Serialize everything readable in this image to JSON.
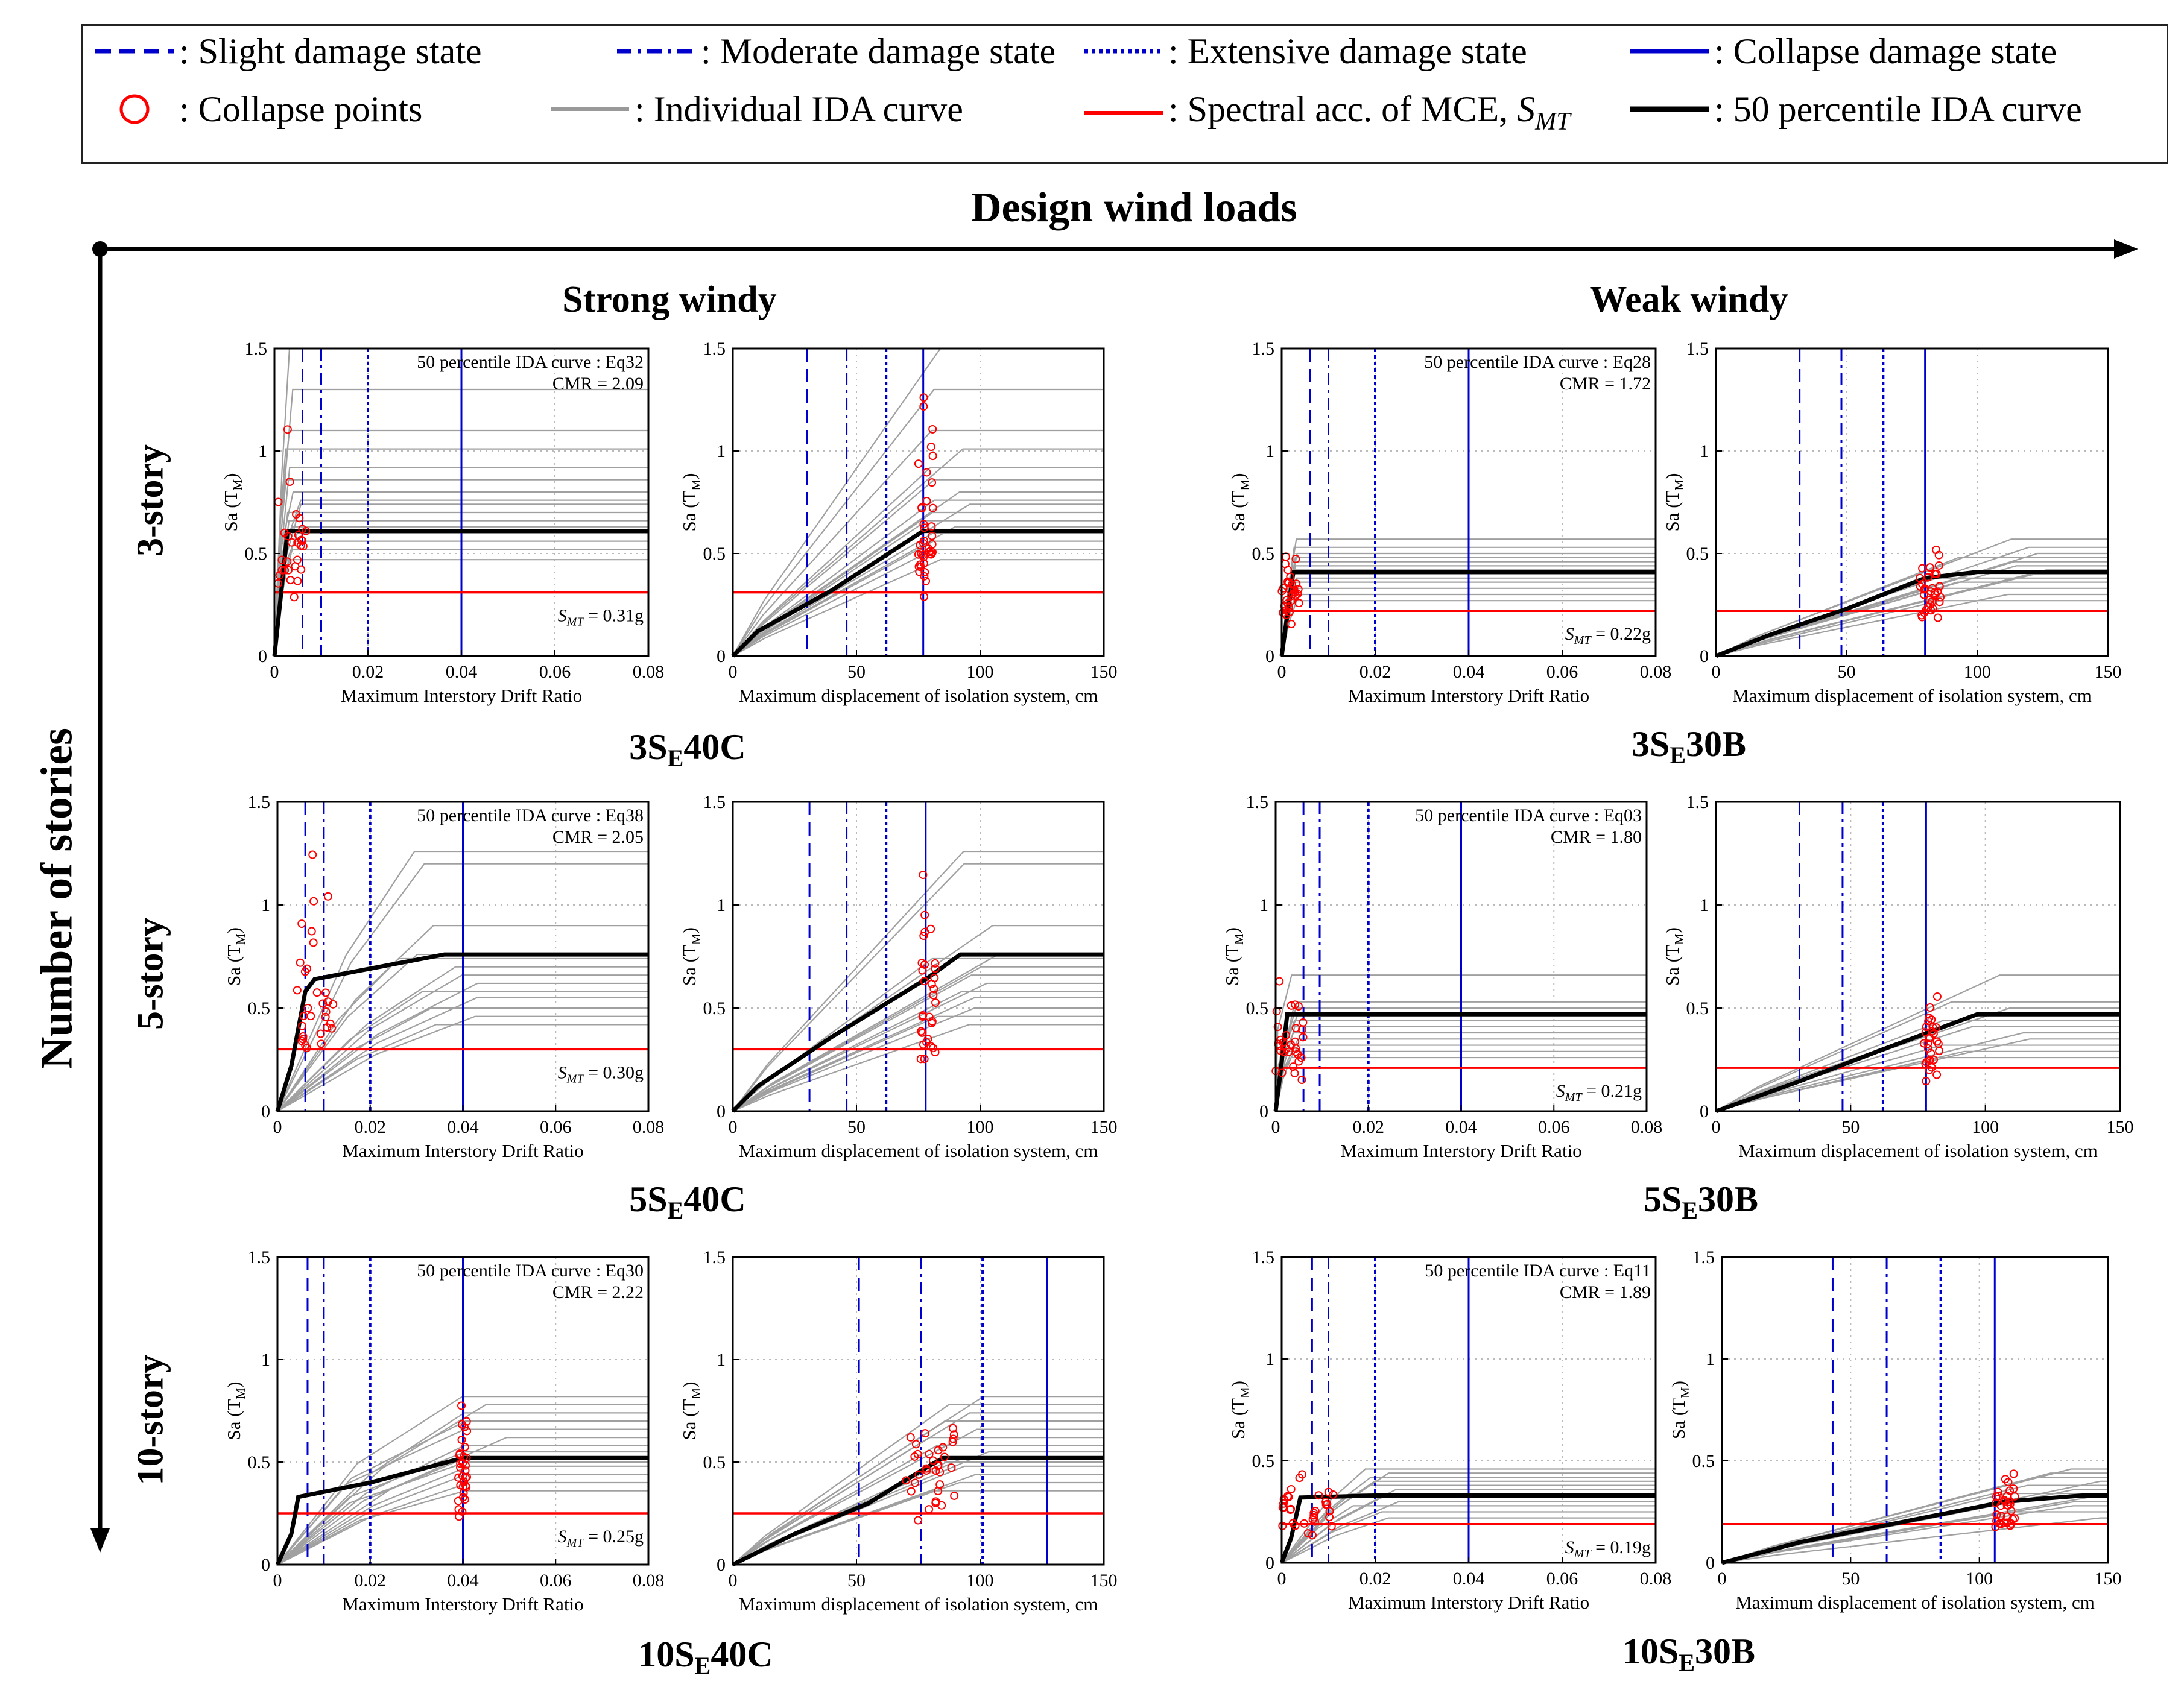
{
  "legend": {
    "items": [
      {
        "key": "slight",
        "text": ": Slight damage state",
        "color": "#0000cc",
        "style": "dashed"
      },
      {
        "key": "moderate",
        "text": ": Moderate damage state",
        "color": "#0000cc",
        "style": "dashdot"
      },
      {
        "key": "extensive",
        "text": ": Extensive damage state",
        "color": "#0000cc",
        "style": "dotted"
      },
      {
        "key": "collapse_state",
        "text": ": Collapse damage state",
        "color": "#0000cc",
        "style": "solid"
      },
      {
        "key": "collapse_points",
        "text": ": Collapse points",
        "color": "#ff0000",
        "style": "circle"
      },
      {
        "key": "individual",
        "text": ": Individual IDA curve",
        "color": "#999999",
        "style": "solid"
      },
      {
        "key": "mce",
        "text": ": Spectral acc. of MCE, ",
        "sym": "S",
        "sub": "MT",
        "color": "#ff0000",
        "style": "solid"
      },
      {
        "key": "median",
        "text": ": 50 percentile IDA curve",
        "color": "#000000",
        "style": "solid-thick"
      }
    ]
  },
  "axis_titles": {
    "horizontal": "Design wind loads",
    "vertical": "Number of stories"
  },
  "columns": [
    "Strong windy",
    "Weak windy"
  ],
  "rows": [
    "3-story",
    "5-story",
    "10-story"
  ],
  "colors": {
    "individual": "#a0a0a0",
    "median": "#000000",
    "mce": "#ff0000",
    "damage": "#0000cc",
    "collapse": "#ff0000"
  },
  "panel_labels": [
    {
      "pre": "3S",
      "sub": "E",
      "post": "40C"
    },
    {
      "pre": "3S",
      "sub": "E",
      "post": "30B"
    },
    {
      "pre": "5S",
      "sub": "E",
      "post": "40C"
    },
    {
      "pre": "5S",
      "sub": "E",
      "post": "30B"
    },
    {
      "pre": "10S",
      "sub": "E",
      "post": "40C"
    },
    {
      "pre": "10S",
      "sub": "E",
      "post": "30B"
    }
  ],
  "chart_data": [
    {
      "type": "line",
      "panel": "3SE40C",
      "kind": "drift",
      "xlabel": "Maximum Interstory Drift Ratio",
      "ylabel": "Sa (T",
      "ylabel_sub": "M",
      "ylabel_end": ")",
      "xlim": [
        0,
        0.08
      ],
      "ylim": [
        0,
        1.5
      ],
      "xticks": [
        0,
        0.02,
        0.04,
        0.06,
        0.08
      ],
      "xtick_labels": [
        "0",
        "0.02",
        "0.04",
        "0.06",
        "0.08"
      ],
      "yticks": [
        0,
        0.5,
        1,
        1.5
      ],
      "ytick_labels": [
        "0",
        "0.5",
        "1",
        "1.5"
      ],
      "damage_states": [
        0.006,
        0.01,
        0.02,
        0.04
      ],
      "mce": 0.31,
      "mce_label": "= 0.31g",
      "median_label": "50 percentile IDA curve : Eq32",
      "cmr_label": "CMR = 2.09",
      "median_curve": [
        [
          0,
          0
        ],
        [
          0.0014,
          0.3
        ],
        [
          0.0028,
          0.61
        ],
        [
          0.08,
          0.61
        ]
      ],
      "plateaus": [
        0.47,
        0.52,
        0.56,
        0.6,
        0.63,
        0.66,
        0.7,
        0.74,
        0.76,
        0.8,
        0.86,
        0.92,
        1.01,
        1.1,
        1.3,
        1.5
      ],
      "collapse_x": 0.003,
      "x_spread": 0.004
    },
    {
      "type": "line",
      "panel": "3SE40C",
      "kind": "disp",
      "xlabel": "Maximum displacement of isolation system, cm",
      "ylabel": "Sa (T",
      "ylabel_sub": "M",
      "ylabel_end": ")",
      "xlim": [
        0,
        150
      ],
      "ylim": [
        0,
        1.5
      ],
      "xticks": [
        0,
        50,
        100,
        150
      ],
      "xtick_labels": [
        "0",
        "50",
        "100",
        "150"
      ],
      "yticks": [
        0,
        0.5,
        1,
        1.5
      ],
      "ytick_labels": [
        "0",
        "0.5",
        "1",
        "1.5"
      ],
      "damage_states": [
        30,
        46,
        62,
        77
      ],
      "mce": 0.31,
      "median_curve": [
        [
          0,
          0
        ],
        [
          10,
          0.12
        ],
        [
          40,
          0.32
        ],
        [
          77,
          0.61
        ],
        [
          150,
          0.61
        ]
      ],
      "plateaus": [
        0.47,
        0.52,
        0.56,
        0.6,
        0.63,
        0.66,
        0.7,
        0.74,
        0.76,
        0.8,
        0.86,
        0.92,
        1.01,
        1.1,
        1.3,
        1.5
      ],
      "collapse_x": 78,
      "x_spread": 3
    },
    {
      "type": "line",
      "panel": "3SE30B",
      "kind": "drift",
      "xlabel": "Maximum Interstory Drift Ratio",
      "ylabel": "Sa (T",
      "ylabel_sub": "M",
      "ylabel_end": ")",
      "xlim": [
        0,
        0.08
      ],
      "ylim": [
        0,
        1.5
      ],
      "xticks": [
        0,
        0.02,
        0.04,
        0.06,
        0.08
      ],
      "xtick_labels": [
        "0",
        "0.02",
        "0.04",
        "0.06",
        "0.08"
      ],
      "yticks": [
        0,
        0.5,
        1,
        1.5
      ],
      "ytick_labels": [
        "0",
        "0.5",
        "1",
        "1.5"
      ],
      "damage_states": [
        0.006,
        0.01,
        0.02,
        0.04
      ],
      "mce": 0.22,
      "mce_label": "= 0.22g",
      "median_label": "50 percentile IDA curve : Eq28",
      "cmr_label": "CMR = 1.72",
      "median_curve": [
        [
          0,
          0
        ],
        [
          0.0012,
          0.2
        ],
        [
          0.0025,
          0.41
        ],
        [
          0.08,
          0.41
        ]
      ],
      "plateaus": [
        0.27,
        0.3,
        0.33,
        0.36,
        0.38,
        0.4,
        0.42,
        0.44,
        0.46,
        0.48,
        0.5,
        0.53,
        0.57
      ],
      "collapse_x": 0.002,
      "x_spread": 0.002
    },
    {
      "type": "line",
      "panel": "3SE30B",
      "kind": "disp",
      "xlabel": "Maximum displacement of isolation system, cm",
      "ylabel": "Sa (T",
      "ylabel_sub": "M",
      "ylabel_end": ")",
      "xlim": [
        0,
        150
      ],
      "ylim": [
        0,
        1.5
      ],
      "xticks": [
        0,
        50,
        100,
        150
      ],
      "xtick_labels": [
        "0",
        "50",
        "100",
        "150"
      ],
      "yticks": [
        0,
        0.5,
        1,
        1.5
      ],
      "ytick_labels": [
        "0",
        "0.5",
        "1",
        "1.5"
      ],
      "damage_states": [
        32,
        48,
        64,
        80
      ],
      "mce": 0.22,
      "median_curve": [
        [
          0,
          0
        ],
        [
          20,
          0.1
        ],
        [
          50,
          0.23
        ],
        [
          80,
          0.38
        ],
        [
          100,
          0.41
        ],
        [
          150,
          0.41
        ]
      ],
      "plateaus": [
        0.27,
        0.3,
        0.33,
        0.36,
        0.38,
        0.4,
        0.42,
        0.44,
        0.46,
        0.48,
        0.5,
        0.53,
        0.57
      ],
      "collapse_x": 82,
      "x_spread": 4
    },
    {
      "type": "line",
      "panel": "5SE40C",
      "kind": "drift",
      "xlabel": "Maximum Interstory Drift Ratio",
      "ylabel": "Sa (T",
      "ylabel_sub": "M",
      "ylabel_end": ")",
      "xlim": [
        0,
        0.08
      ],
      "ylim": [
        0,
        1.5
      ],
      "xticks": [
        0,
        0.02,
        0.04,
        0.06,
        0.08
      ],
      "xtick_labels": [
        "0",
        "0.02",
        "0.04",
        "0.06",
        "0.08"
      ],
      "yticks": [
        0,
        0.5,
        1,
        1.5
      ],
      "ytick_labels": [
        "0",
        "0.5",
        "1",
        "1.5"
      ],
      "damage_states": [
        0.006,
        0.01,
        0.02,
        0.04
      ],
      "mce": 0.3,
      "mce_label": "= 0.30g",
      "median_label": "50 percentile IDA curve : Eq38",
      "cmr_label": "CMR = 2.05",
      "median_curve": [
        [
          0,
          0
        ],
        [
          0.003,
          0.22
        ],
        [
          0.006,
          0.58
        ],
        [
          0.008,
          0.64
        ],
        [
          0.036,
          0.76
        ],
        [
          0.08,
          0.76
        ]
      ],
      "plateaus": [
        0.42,
        0.46,
        0.5,
        0.55,
        0.58,
        0.62,
        0.66,
        0.7,
        0.74,
        0.76,
        0.9,
        1.2,
        1.26
      ],
      "collapse_x": 0.008,
      "x_spread": 0.004
    },
    {
      "type": "line",
      "panel": "5SE40C",
      "kind": "disp",
      "xlabel": "Maximum displacement of isolation system, cm",
      "ylabel": "Sa (T",
      "ylabel_sub": "M",
      "ylabel_end": ")",
      "xlim": [
        0,
        150
      ],
      "ylim": [
        0,
        1.5
      ],
      "xticks": [
        0,
        50,
        100,
        150
      ],
      "xtick_labels": [
        "0",
        "50",
        "100",
        "150"
      ],
      "yticks": [
        0,
        0.5,
        1,
        1.5
      ],
      "ytick_labels": [
        "0",
        "0.5",
        "1",
        "1.5"
      ],
      "damage_states": [
        31,
        46,
        62,
        78
      ],
      "mce": 0.3,
      "median_curve": [
        [
          0,
          0
        ],
        [
          10,
          0.12
        ],
        [
          40,
          0.36
        ],
        [
          78,
          0.64
        ],
        [
          92,
          0.76
        ],
        [
          150,
          0.76
        ]
      ],
      "plateaus": [
        0.42,
        0.46,
        0.5,
        0.55,
        0.58,
        0.62,
        0.66,
        0.7,
        0.74,
        0.76,
        0.9,
        1.2,
        1.26
      ],
      "collapse_x": 79,
      "x_spread": 3
    },
    {
      "type": "line",
      "panel": "5SE30B",
      "kind": "drift",
      "xlabel": "Maximum Interstory Drift Ratio",
      "ylabel": "Sa (T",
      "ylabel_sub": "M",
      "ylabel_end": ")",
      "xlim": [
        0,
        0.08
      ],
      "ylim": [
        0,
        1.5
      ],
      "xticks": [
        0,
        0.02,
        0.04,
        0.06,
        0.08
      ],
      "xtick_labels": [
        "0",
        "0.02",
        "0.04",
        "0.06",
        "0.08"
      ],
      "yticks": [
        0,
        0.5,
        1,
        1.5
      ],
      "ytick_labels": [
        "0",
        "0.5",
        "1",
        "1.5"
      ],
      "damage_states": [
        0.006,
        0.0095,
        0.02,
        0.04
      ],
      "mce": 0.21,
      "mce_label": "= 0.21g",
      "median_label": "50 percentile IDA curve : Eq03",
      "cmr_label": "CMR = 1.80",
      "median_curve": [
        [
          0,
          0
        ],
        [
          0.001,
          0.18
        ],
        [
          0.0025,
          0.47
        ],
        [
          0.08,
          0.47
        ]
      ],
      "plateaus": [
        0.26,
        0.29,
        0.32,
        0.35,
        0.38,
        0.41,
        0.44,
        0.47,
        0.5,
        0.53,
        0.66
      ],
      "collapse_x": 0.003,
      "x_spread": 0.003
    },
    {
      "type": "line",
      "panel": "5SE30B",
      "kind": "disp",
      "xlabel": "Maximum displacement of isolation system, cm",
      "ylabel": "Sa (T",
      "ylabel_sub": "M",
      "ylabel_end": ")",
      "xlim": [
        0,
        150
      ],
      "ylim": [
        0,
        1.5
      ],
      "xticks": [
        0,
        50,
        100,
        150
      ],
      "xtick_labels": [
        "0",
        "50",
        "100",
        "150"
      ],
      "yticks": [
        0,
        0.5,
        1,
        1.5
      ],
      "ytick_labels": [
        "0",
        "0.5",
        "1",
        "1.5"
      ],
      "damage_states": [
        31,
        47,
        62,
        78
      ],
      "mce": 0.21,
      "median_curve": [
        [
          0,
          0
        ],
        [
          30,
          0.14
        ],
        [
          60,
          0.29
        ],
        [
          97,
          0.47
        ],
        [
          150,
          0.47
        ]
      ],
      "plateaus": [
        0.26,
        0.29,
        0.32,
        0.35,
        0.38,
        0.41,
        0.44,
        0.47,
        0.5,
        0.53,
        0.66
      ],
      "collapse_x": 80,
      "x_spread": 3
    },
    {
      "type": "line",
      "panel": "10SE40C",
      "kind": "drift",
      "xlabel": "Maximum Interstory Drift Ratio",
      "ylabel": "Sa (T",
      "ylabel_sub": "M",
      "ylabel_end": ")",
      "xlim": [
        0,
        0.08
      ],
      "ylim": [
        0,
        1.5
      ],
      "xticks": [
        0,
        0.02,
        0.04,
        0.06,
        0.08
      ],
      "xtick_labels": [
        "0",
        "0.02",
        "0.04",
        "0.06",
        "0.08"
      ],
      "yticks": [
        0,
        0.5,
        1,
        1.5
      ],
      "ytick_labels": [
        "0",
        "0.5",
        "1",
        "1.5"
      ],
      "damage_states": [
        0.0065,
        0.01,
        0.02,
        0.04
      ],
      "mce": 0.25,
      "mce_label": "= 0.25g",
      "median_label": "50 percentile IDA curve : Eq30",
      "cmr_label": "CMR = 2.22",
      "median_curve": [
        [
          0,
          0
        ],
        [
          0.003,
          0.15
        ],
        [
          0.0045,
          0.33
        ],
        [
          0.02,
          0.4
        ],
        [
          0.04,
          0.52
        ],
        [
          0.08,
          0.52
        ]
      ],
      "plateaus": [
        0.36,
        0.4,
        0.44,
        0.48,
        0.5,
        0.52,
        0.55,
        0.58,
        0.62,
        0.66,
        0.7,
        0.74,
        0.78,
        0.82
      ],
      "collapse_x": 0.04,
      "x_spread": 0.001
    },
    {
      "type": "line",
      "panel": "10SE40C",
      "kind": "disp",
      "xlabel": "Maximum displacement of isolation system, cm",
      "ylabel": "Sa (T",
      "ylabel_sub": "M",
      "ylabel_end": ")",
      "xlim": [
        0,
        150
      ],
      "ylim": [
        0,
        1.5
      ],
      "xticks": [
        0,
        50,
        100,
        150
      ],
      "xtick_labels": [
        "0",
        "50",
        "100",
        "150"
      ],
      "yticks": [
        0,
        0.5,
        1,
        1.5
      ],
      "ytick_labels": [
        "0",
        "0.5",
        "1",
        "1.5"
      ],
      "damage_states": [
        51,
        76,
        101,
        127
      ],
      "mce": 0.25,
      "median_curve": [
        [
          0,
          0
        ],
        [
          25,
          0.15
        ],
        [
          55,
          0.3
        ],
        [
          75,
          0.45
        ],
        [
          85,
          0.52
        ],
        [
          150,
          0.52
        ]
      ],
      "plateaus": [
        0.36,
        0.4,
        0.44,
        0.48,
        0.5,
        0.52,
        0.55,
        0.58,
        0.62,
        0.66,
        0.7,
        0.74,
        0.78,
        0.82
      ],
      "collapse_x": 80,
      "x_spread": 10
    },
    {
      "type": "line",
      "panel": "10SE30B",
      "kind": "drift",
      "xlabel": "Maximum Interstory Drift Ratio",
      "ylabel": "Sa (T",
      "ylabel_sub": "M",
      "ylabel_end": ")",
      "xlim": [
        0,
        0.08
      ],
      "ylim": [
        0,
        1.5
      ],
      "xticks": [
        0,
        0.02,
        0.04,
        0.06,
        0.08
      ],
      "xtick_labels": [
        "0",
        "0.02",
        "0.04",
        "0.06",
        "0.08"
      ],
      "yticks": [
        0,
        0.5,
        1,
        1.5
      ],
      "ytick_labels": [
        "0",
        "0.5",
        "1",
        "1.5"
      ],
      "damage_states": [
        0.0065,
        0.01,
        0.02,
        0.04
      ],
      "mce": 0.19,
      "mce_label": "= 0.19g",
      "median_label": "50 percentile IDA curve : Eq11",
      "cmr_label": "CMR = 1.89",
      "median_curve": [
        [
          0,
          0
        ],
        [
          0.002,
          0.12
        ],
        [
          0.004,
          0.32
        ],
        [
          0.02,
          0.33
        ],
        [
          0.08,
          0.33
        ]
      ],
      "plateaus": [
        0.22,
        0.25,
        0.28,
        0.3,
        0.32,
        0.34,
        0.36,
        0.38,
        0.4,
        0.42,
        0.44,
        0.46
      ],
      "collapse_x": 0.006,
      "x_spread": 0.006
    },
    {
      "type": "line",
      "panel": "10SE30B",
      "kind": "disp",
      "xlabel": "Maximum displacement of isolation system, cm",
      "ylabel": "Sa (T",
      "ylabel_sub": "M",
      "ylabel_end": ")",
      "xlim": [
        0,
        150
      ],
      "ylim": [
        0,
        1.5
      ],
      "xticks": [
        0,
        50,
        100,
        150
      ],
      "xtick_labels": [
        "0",
        "50",
        "100",
        "150"
      ],
      "yticks": [
        0,
        0.5,
        1,
        1.5
      ],
      "ytick_labels": [
        "0",
        "0.5",
        "1",
        "1.5"
      ],
      "damage_states": [
        43,
        64,
        85,
        106
      ],
      "mce": 0.19,
      "median_curve": [
        [
          0,
          0
        ],
        [
          30,
          0.1
        ],
        [
          70,
          0.2
        ],
        [
          110,
          0.3
        ],
        [
          140,
          0.33
        ],
        [
          150,
          0.33
        ]
      ],
      "plateaus": [
        0.22,
        0.25,
        0.28,
        0.3,
        0.32,
        0.34,
        0.36,
        0.38,
        0.4,
        0.42,
        0.44,
        0.46
      ],
      "collapse_x": 110,
      "x_spread": 4
    }
  ]
}
